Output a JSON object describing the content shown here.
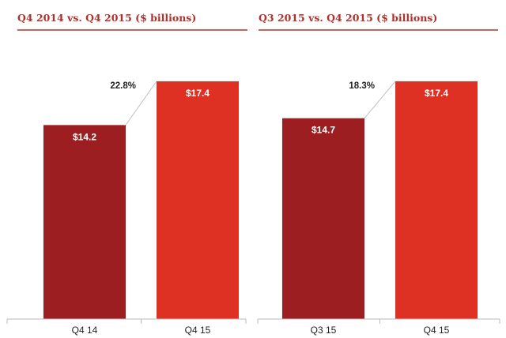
{
  "colors": {
    "title": "#b0312a",
    "rule": "#b0312a",
    "bar_dark": "#9d1e20",
    "bar_light": "#df3123",
    "axis": "#bbbbbb",
    "connector": "#c0c0c0"
  },
  "chart_data": [
    {
      "type": "bar",
      "title": "Q4 2014 vs. Q4 2015 ($ billions)",
      "categories": [
        "Q4 14",
        "Q4 15"
      ],
      "values": [
        14.2,
        17.4
      ],
      "value_labels": [
        "$14.2",
        "$17.4"
      ],
      "growth_label": "22.8%",
      "ylim": [
        0,
        17.4
      ],
      "xlabel": "",
      "ylabel": ""
    },
    {
      "type": "bar",
      "title": "Q3 2015 vs. Q4 2015 ($ billions)",
      "categories": [
        "Q3 15",
        "Q4 15"
      ],
      "values": [
        14.7,
        17.4
      ],
      "value_labels": [
        "$14.7",
        "$17.4"
      ],
      "growth_label": "18.3%",
      "ylim": [
        0,
        17.4
      ],
      "xlabel": "",
      "ylabel": ""
    }
  ]
}
